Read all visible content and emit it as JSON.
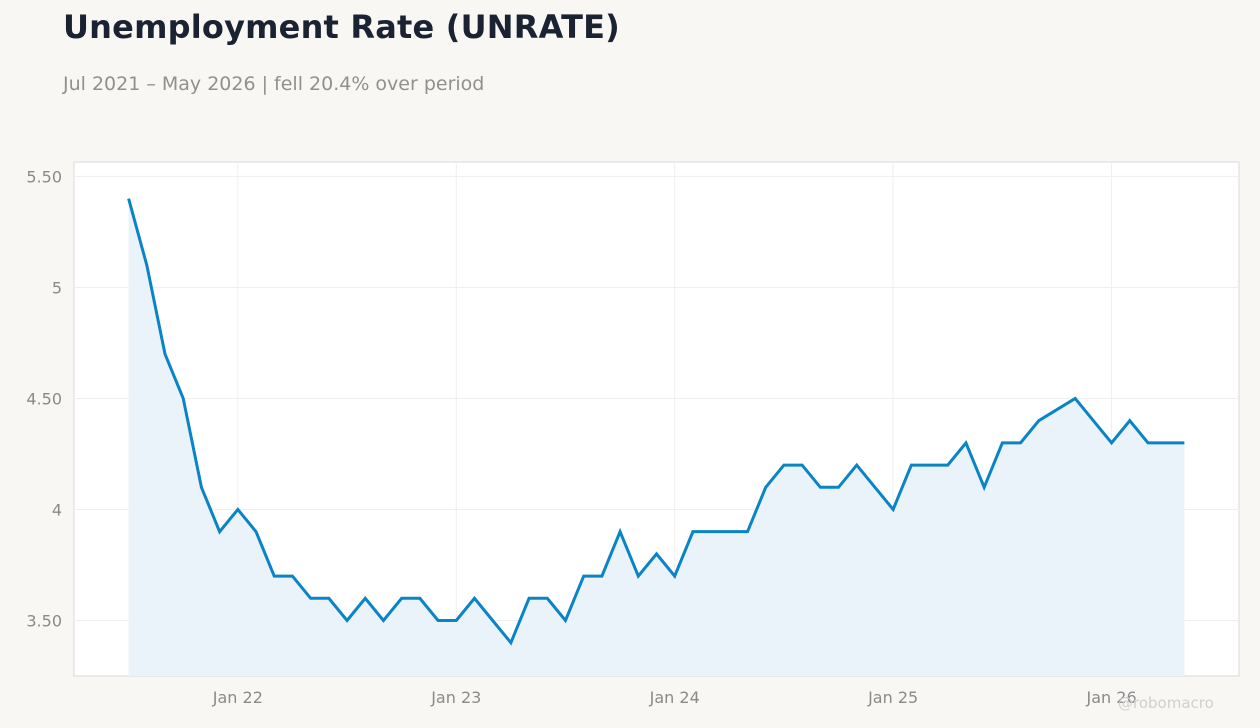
{
  "title": "Unemployment Rate (UNRATE)",
  "subtitle": "Jul 2021 – May 2026 | fell 20.4% over period",
  "watermark": "@robomacro",
  "chart_data": {
    "type": "area",
    "title": "Unemployment Rate (UNRATE)",
    "xlabel": "",
    "ylabel": "",
    "x": [
      "2021-07",
      "2021-08",
      "2021-09",
      "2021-10",
      "2021-11",
      "2021-12",
      "2022-01",
      "2022-02",
      "2022-03",
      "2022-04",
      "2022-05",
      "2022-06",
      "2022-07",
      "2022-08",
      "2022-09",
      "2022-10",
      "2022-11",
      "2022-12",
      "2023-01",
      "2023-02",
      "2023-03",
      "2023-04",
      "2023-05",
      "2023-06",
      "2023-07",
      "2023-08",
      "2023-09",
      "2023-10",
      "2023-11",
      "2023-12",
      "2024-01",
      "2024-02",
      "2024-03",
      "2024-04",
      "2024-05",
      "2024-06",
      "2024-07",
      "2024-08",
      "2024-09",
      "2024-10",
      "2024-11",
      "2024-12",
      "2025-01",
      "2025-02",
      "2025-03",
      "2025-04",
      "2025-05",
      "2025-06",
      "2025-07",
      "2025-08",
      "2025-09",
      "2025-10",
      "2025-11",
      "2025-12",
      "2026-01",
      "2026-02",
      "2026-03",
      "2026-04",
      "2026-05"
    ],
    "series": [
      {
        "values": [
          5.4,
          5.1,
          4.7,
          4.5,
          4.1,
          3.9,
          4.0,
          3.9,
          3.7,
          3.7,
          3.6,
          3.6,
          3.5,
          3.6,
          3.5,
          3.6,
          3.6,
          3.5,
          3.5,
          3.6,
          3.5,
          3.4,
          3.6,
          3.6,
          3.5,
          3.7,
          3.7,
          3.9,
          3.7,
          3.8,
          3.7,
          3.9,
          3.9,
          3.9,
          3.9,
          4.1,
          4.2,
          4.2,
          4.1,
          4.1,
          4.2,
          4.1,
          4.0,
          4.2,
          4.2,
          4.2,
          4.3,
          4.1,
          4.3,
          4.3,
          4.4,
          4.45,
          4.5,
          4.4,
          4.3,
          4.4,
          4.3,
          4.3,
          4.3
        ],
        "color": "#0a84c6"
      }
    ],
    "fill_color": "#eaf3fa",
    "x_ticks": [
      {
        "date": "2022-01",
        "label": "Jan 22"
      },
      {
        "date": "2023-01",
        "label": "Jan 23"
      },
      {
        "date": "2024-01",
        "label": "Jan 24"
      },
      {
        "date": "2025-01",
        "label": "Jan 25"
      },
      {
        "date": "2026-01",
        "label": "Jan 26"
      }
    ],
    "y_ticks": [
      {
        "value": 3.5,
        "label": "3.50"
      },
      {
        "value": 4.0,
        "label": "4"
      },
      {
        "value": 4.5,
        "label": "4.50"
      },
      {
        "value": 5.0,
        "label": "5"
      },
      {
        "value": 5.5,
        "label": "5.50"
      }
    ],
    "ylim": [
      3.25,
      5.565
    ],
    "xlim": [
      "2021-04",
      "2026-08"
    ],
    "grid": true,
    "legend": "none"
  }
}
